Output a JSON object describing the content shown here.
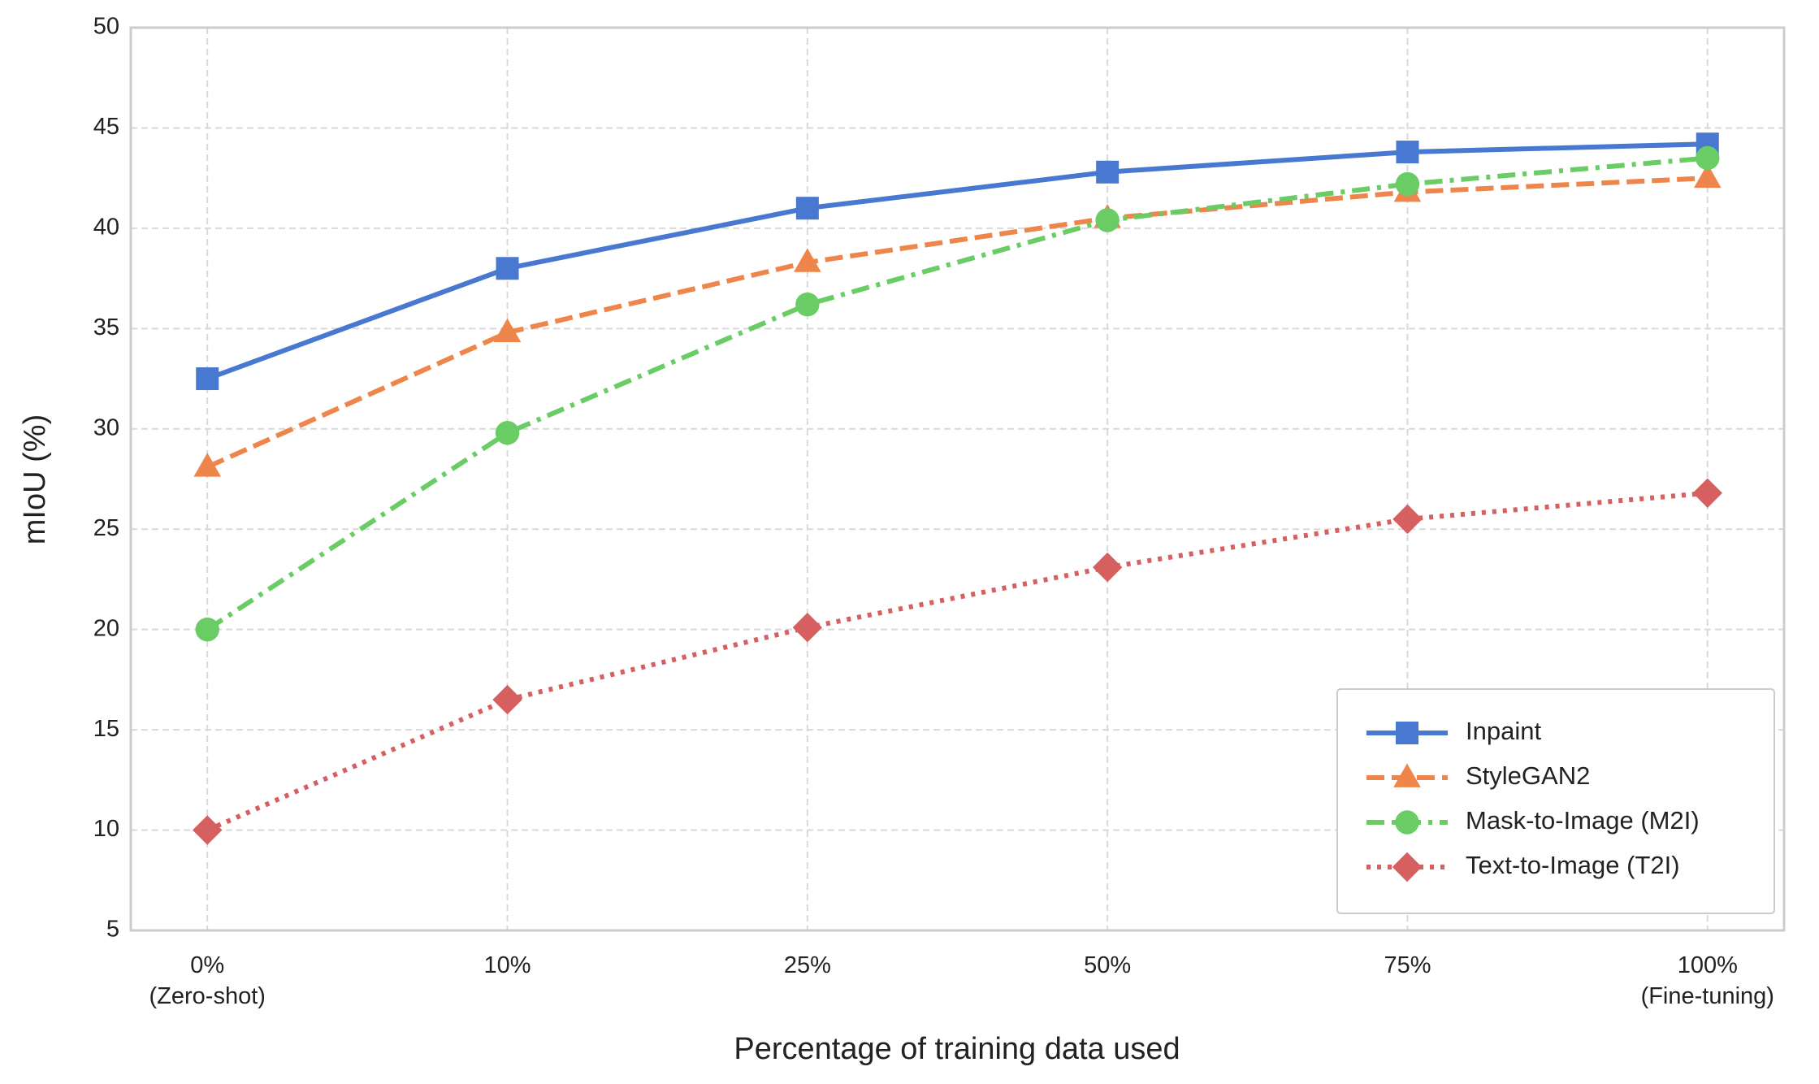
{
  "chart_data": {
    "type": "line",
    "x_label": "Percentage of training data used",
    "y_label": "mIoU (%)",
    "categories": [
      "0%\n(Zero-shot)",
      "10%",
      "25%",
      "50%",
      "75%",
      "100%\n(Fine-tuning)"
    ],
    "series": [
      {
        "name": "Inpaint",
        "color": "#4878d0",
        "line_style": "solid",
        "marker": "square",
        "values": [
          32.5,
          38,
          41,
          42.8,
          43.8,
          44.2
        ]
      },
      {
        "name": "StyleGAN2",
        "color": "#ee854a",
        "line_style": "dashed",
        "marker": "triangle",
        "values": [
          28.1,
          34.8,
          38.3,
          40.5,
          41.8,
          42.5
        ]
      },
      {
        "name": "Mask-to-Image (M2I)",
        "color": "#6acc64",
        "line_style": "dashdot",
        "marker": "circle",
        "values": [
          20,
          29.8,
          36.2,
          40.4,
          42.2,
          43.5
        ]
      },
      {
        "name": "Text-to-Image (T2I)",
        "color": "#d65f5f",
        "line_style": "dotted",
        "marker": "diamond",
        "values": [
          10,
          16.5,
          20.1,
          23.1,
          25.5,
          26.8
        ]
      }
    ],
    "ylim": [
      5,
      50
    ],
    "yticks": [
      5,
      10,
      15,
      20,
      25,
      30,
      35,
      40,
      45,
      50
    ],
    "grid": true,
    "legend": "lower right"
  }
}
